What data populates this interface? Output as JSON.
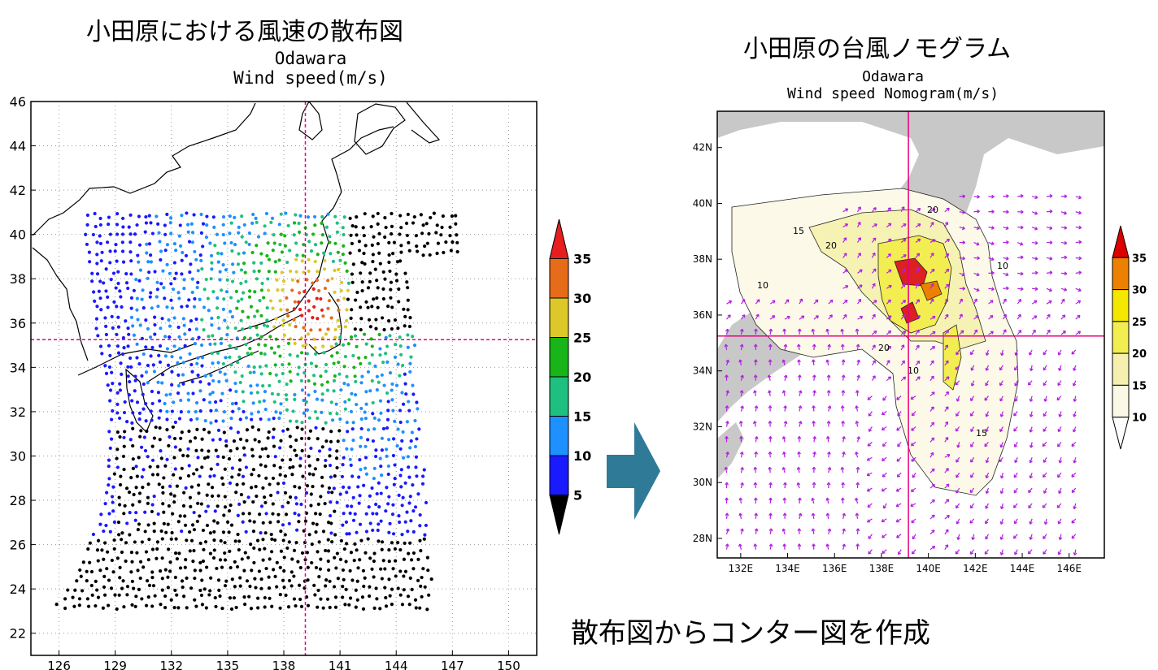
{
  "left_heading": "小田原における風速の散布図",
  "right_heading": "小田原の台風ノモグラム",
  "footer_caption": "散布図からコンター図を作成",
  "chart_data": [
    {
      "type": "scatter",
      "title": "Odawara",
      "subtitle": "Wind speed(m/s)",
      "x_ticks": [
        126,
        129,
        132,
        135,
        138,
        141,
        144,
        147,
        150
      ],
      "y_ticks": [
        22,
        24,
        26,
        28,
        30,
        32,
        34,
        36,
        38,
        40,
        42,
        44,
        46
      ],
      "xlim": [
        124.5,
        151.5
      ],
      "ylim": [
        21,
        46
      ],
      "grid": true,
      "crosshair": {
        "lon": 139.15,
        "lat": 35.25,
        "color": "#e6007e"
      },
      "colorbar": {
        "ticks": [
          5,
          10,
          15,
          20,
          25,
          30,
          35
        ],
        "colors": [
          "#000000",
          "#1a1aff",
          "#1e90ff",
          "#1fc07f",
          "#18b418",
          "#dcc828",
          "#e66c1a",
          "#e61e1e"
        ]
      },
      "points_description": "ship-track style scatter of wind speed; black under 5, blue 5-10, light blue 10-15, green 15-25, yellow/orange/red near Sagami Bay"
    },
    {
      "type": "contour",
      "title": "Odawara",
      "subtitle": "Wind speed Nomogram(m/s)",
      "x_ticks": [
        "132E",
        "134E",
        "136E",
        "138E",
        "140E",
        "142E",
        "144E",
        "146E"
      ],
      "y_ticks": [
        "28N",
        "30N",
        "32N",
        "34N",
        "36N",
        "38N",
        "40N",
        "42N"
      ],
      "xlim": [
        131,
        147.5
      ],
      "ylim": [
        27.3,
        43.3
      ],
      "contour_labels": [
        "10",
        "15",
        "20"
      ],
      "crosshair": {
        "lon": 139.15,
        "lat": 35.25,
        "color": "#e6007e"
      },
      "vector_color": "#b020e0",
      "colorbar": {
        "ticks": [
          10,
          15,
          20,
          25,
          30,
          35
        ],
        "colors": [
          "#ffffff",
          "#fbf8e6",
          "#f5f0b0",
          "#f2ee50",
          "#f5e800",
          "#ee8000",
          "#dd0000"
        ]
      }
    }
  ]
}
